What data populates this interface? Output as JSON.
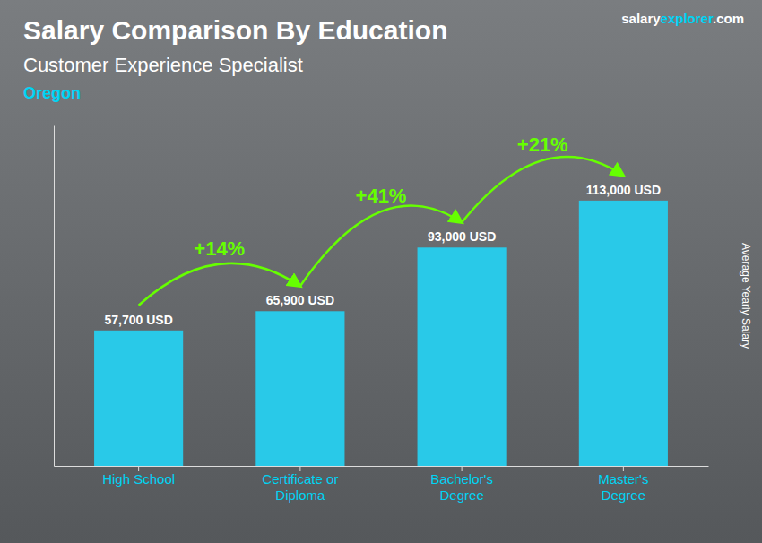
{
  "chart_data": {
    "type": "bar",
    "title": "Salary Comparison By Education",
    "subtitle": "Customer Experience Specialist",
    "location": "Oregon",
    "brand": [
      "salary",
      "explorer",
      ".com"
    ],
    "ylabel": "Average Yearly Salary",
    "categories": [
      "High School",
      "Certificate or\nDiploma",
      "Bachelor's\nDegree",
      "Master's\nDegree"
    ],
    "values": [
      57700,
      65900,
      93000,
      113000
    ],
    "value_labels": [
      "57,700 USD",
      "65,900 USD",
      "93,000 USD",
      "113,000 USD"
    ],
    "pct_labels": [
      "+14%",
      "+41%",
      "+21%"
    ],
    "color": "#29c9e8",
    "ylim": [
      0,
      145000
    ],
    "data_labels": true,
    "tick_labels": "x"
  }
}
